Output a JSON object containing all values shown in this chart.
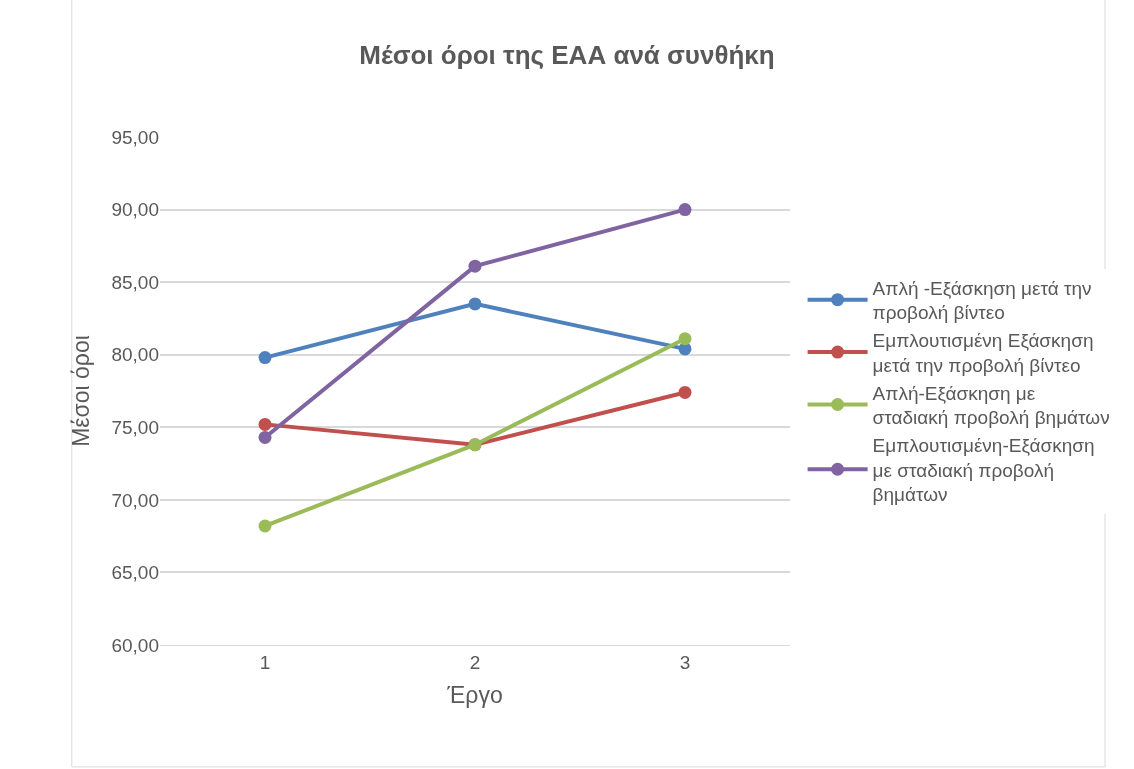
{
  "chart_data": {
    "type": "line",
    "title": "Μέσοι όροι της ΕΑΑ ανά συνθήκη",
    "xlabel": "Έργο",
    "ylabel": "Μέσοι όροι",
    "categories": [
      "1",
      "2",
      "3"
    ],
    "series": [
      {
        "name": "Απλή -Εξάσκηση μετά την προβολή βίντεο",
        "color": "#4f81bd",
        "values": [
          79.8,
          83.5,
          80.4
        ]
      },
      {
        "name": "Εμπλουτισμένη Εξάσκηση μετά την προβολή βίντεο",
        "color": "#c0504d",
        "values": [
          75.2,
          73.8,
          77.4
        ]
      },
      {
        "name": "Απλή-Εξάσκηση με σταδιακή προβολή βημάτων",
        "color": "#9bbb59",
        "values": [
          68.2,
          73.8,
          81.1
        ]
      },
      {
        "name": "Εμπλουτισμένη-Εξάσκηση με σταδιακή προβολή βημάτων",
        "color": "#8064a2",
        "values": [
          74.3,
          86.1,
          90.0
        ]
      }
    ],
    "ylim": [
      60,
      95
    ],
    "yticks": [
      {
        "value": 60,
        "label": "60,00"
      },
      {
        "value": 65,
        "label": "65,00"
      },
      {
        "value": 70,
        "label": "70,00"
      },
      {
        "value": 75,
        "label": "75,00"
      },
      {
        "value": 80,
        "label": "80,00"
      },
      {
        "value": 85,
        "label": "85,00"
      },
      {
        "value": 90,
        "label": "90,00"
      },
      {
        "value": 95,
        "label": "95,00"
      }
    ],
    "grid": "y",
    "legend": "right",
    "marker": "circle",
    "line_style": "solid"
  }
}
